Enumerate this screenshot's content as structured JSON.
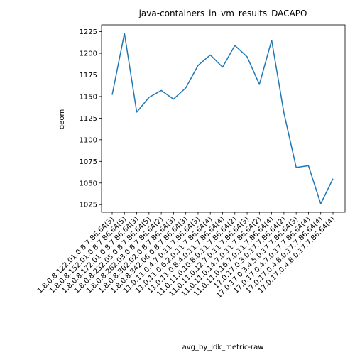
{
  "chart_data": {
    "type": "line",
    "title": "java-containers_in_vm_results_DACAPO",
    "xlabel": "avg_by_jdk_metric-raw",
    "ylabel": "geom",
    "categories": [
      "1.8.0.8.122.01.0.8.7.86.64(3)",
      "1.8.0.8.152.01.0.8.7.86.64(5)",
      "1.8.0.8.172.01.0.8.7.86.64(3)",
      "1.8.0.8.232.05.0.8.7.86.64(5)",
      "1.8.0.8.262.03.0.8.7.86.64(2)",
      "1.8.0.8.302.02.0.8.7.86.64(3)",
      "1.8.0.8.342.06.0.8.7.86.64(3)",
      "11.0.11.0.4.7.0.11.7.86.64(3)",
      "11.0.11.0.6.2.0.11.7.86.64(4)",
      "11.0.11.0.8.4.0.11.7.86.64(4)",
      "11.0.11.0.10.8.0.11.7.86.64(2)",
      "11.0.11.0.12.7.0.11.7.86.64(3)",
      "11.0.11.0.14.7.0.11.7.86.64(2)",
      "11.0.11.0.16.7.0.11.7.86.64(4)",
      "17.0.17.0.3.0.17.7.86.64(2)",
      "17.0.17.0.3.4.5.0.17.7.86.64(3)",
      "17.0.17.0.4.7.0.17.7.86.64(4)",
      "17.0.17.0.4.8.0.17.7.86.64(4)",
      "17.0.17.0.4.8.0.17.7.86.64(4)"
    ],
    "values": [
      1152,
      1223,
      1132,
      1149,
      1157,
      1147,
      1160,
      1186,
      1198,
      1184,
      1209,
      1196,
      1164,
      1215,
      1131,
      1068,
      1070,
      1026,
      1055
    ],
    "yticks": [
      1025,
      1050,
      1075,
      1100,
      1125,
      1150,
      1175,
      1200,
      1225
    ],
    "ylim": [
      1016.15,
      1232.85
    ],
    "grid": false,
    "line_color": "#1f77b4"
  }
}
